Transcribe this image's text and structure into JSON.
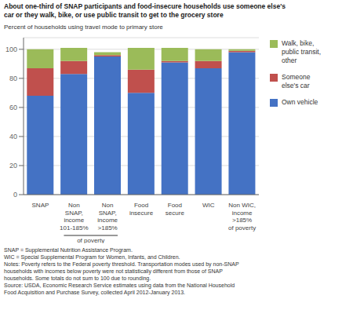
{
  "chart_data": {
    "type": "bar",
    "stacked": true,
    "title": "About one-third of SNAP participants and food-insecure households use someone else's\ncar or they walk, bike, or use public transit to get to the grocery store",
    "y_label": "Percent of households using travel mode to primary store",
    "categories": [
      "SNAP",
      "Non\nSNAP,\nincome\n101-185%",
      "Non\nSNAP,\nincome\n>185%",
      "Food\ninsecure",
      "Food\nsecure",
      "WIC",
      "Non WIC,\nincome\n>185%\nof poverty"
    ],
    "series": [
      {
        "name": "Own vehicle",
        "color": "#4472C4",
        "values": [
          68,
          83,
          95,
          70,
          91,
          87,
          98
        ]
      },
      {
        "name": "Someone\nelse's car",
        "color": "#C0504D",
        "values": [
          19,
          9,
          1,
          16,
          1,
          5,
          1
        ]
      },
      {
        "name": "Walk, bike,\npublic transit,\nother",
        "color": "#9BBB59",
        "values": [
          13,
          9,
          2,
          15,
          9,
          8,
          1
        ]
      }
    ],
    "ylim": [
      0,
      108
    ],
    "yticks": [
      0,
      20,
      40,
      60,
      80,
      100
    ],
    "grid": true,
    "legend": "right",
    "annotations": [
      "of poverty"
    ],
    "footnote": "SNAP = Supplemental Nutrition Assistance Program.\nWIC = Special Supplemental Program for Women, Infants, and Children.\nNotes: Poverty refers to the Federal poverty threshold. Transportation modes used by non-SNAP\nhouseholds with incomes below poverty were not statistically different from those of SNAP\nhouseholds. Some totals do not sum to 100 due to rounding.\nSource: USDA, Economic Research Service estimates using data from the National Household\nFood Acquisition and Purchase Survey, collected April 2012-January 2013."
  }
}
